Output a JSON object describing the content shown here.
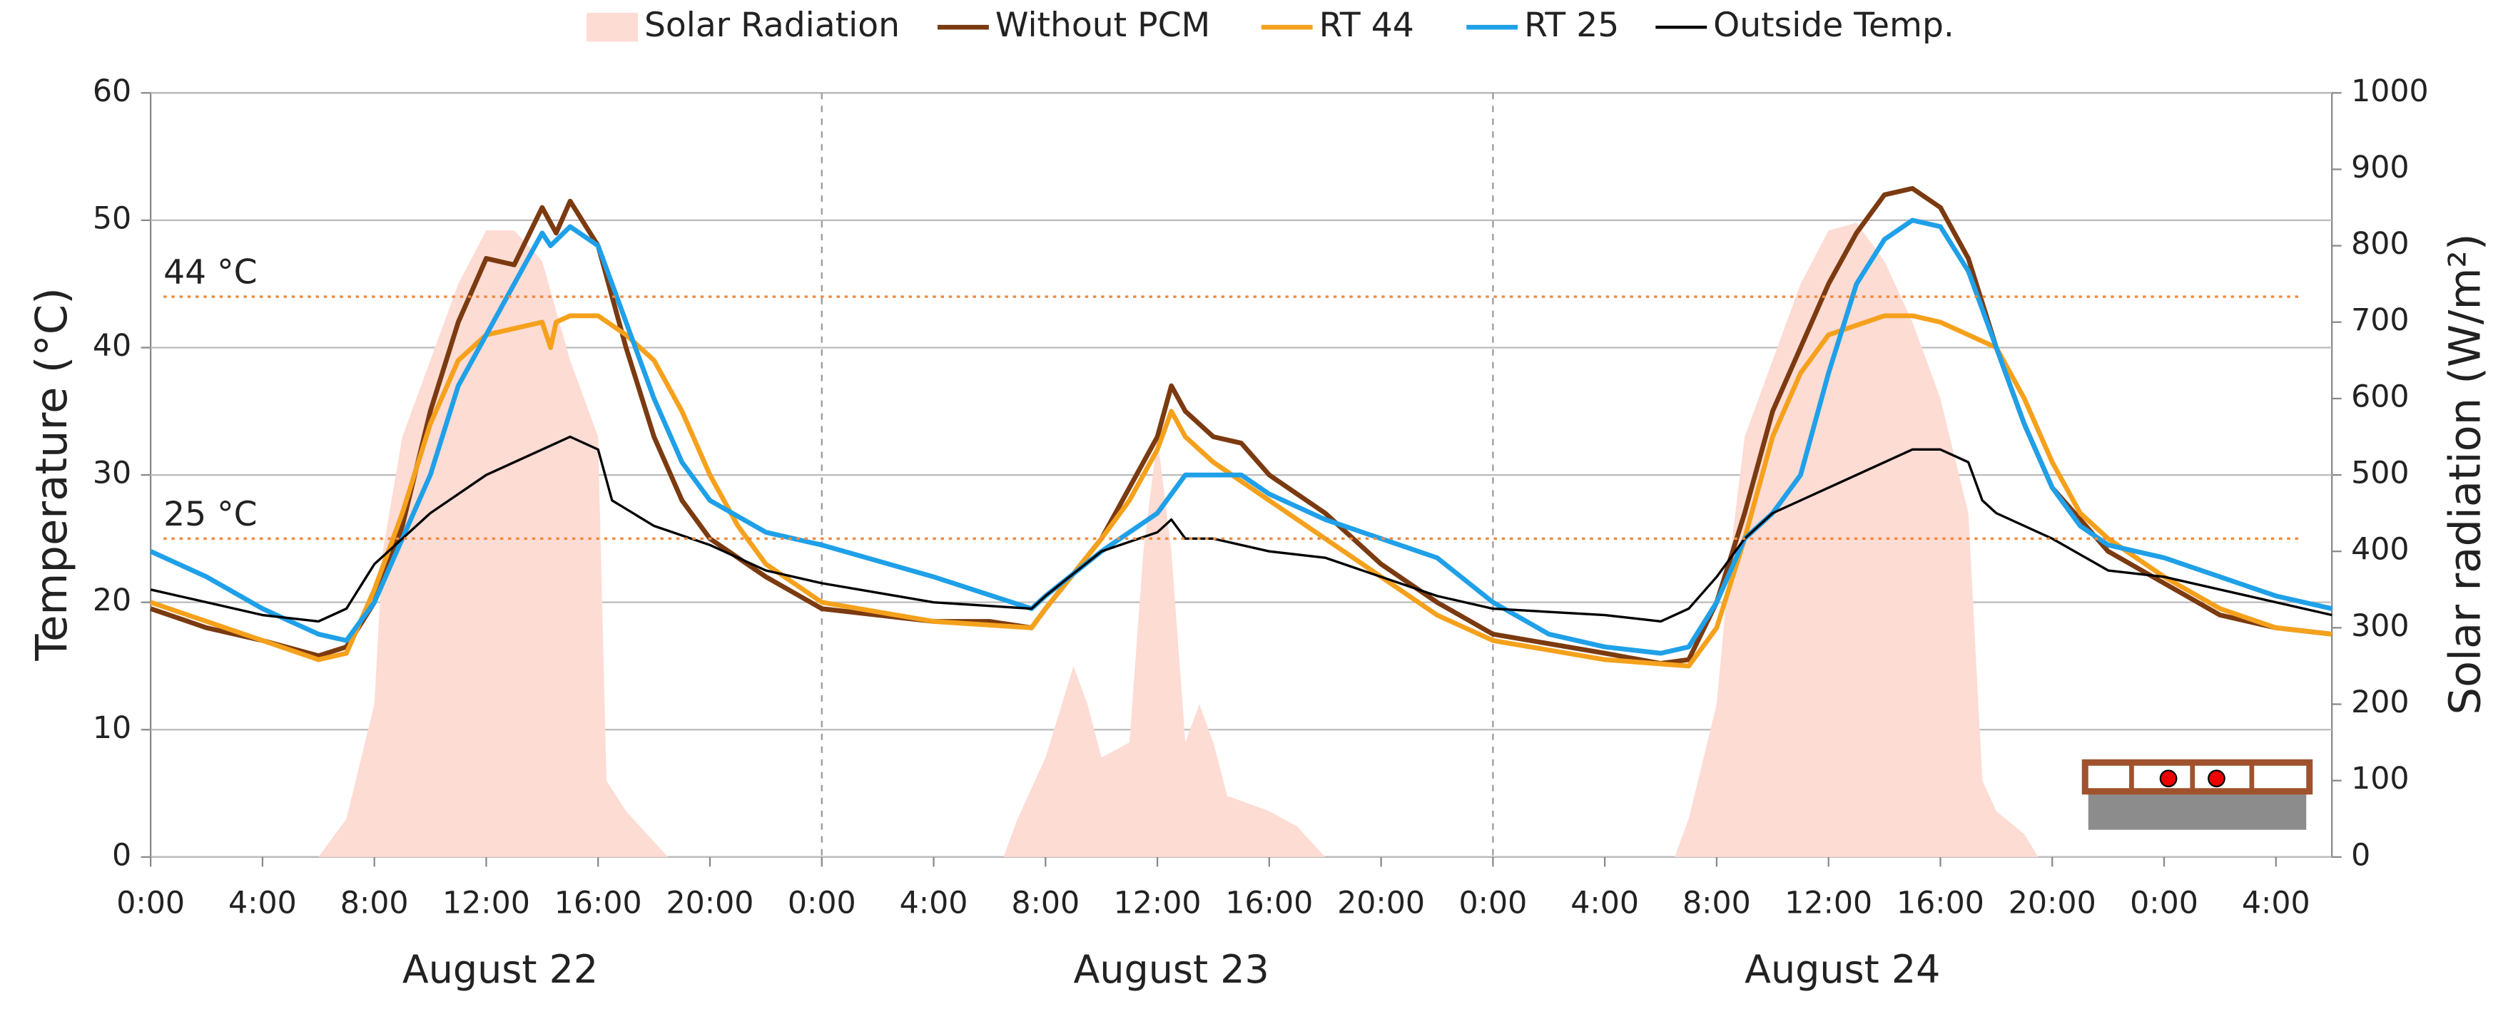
{
  "chart_data": {
    "type": "line",
    "xlim": [
      0,
      78
    ],
    "xticks": [
      {
        "value": 0,
        "label": "0:00"
      },
      {
        "value": 4,
        "label": "4:00"
      },
      {
        "value": 8,
        "label": "8:00"
      },
      {
        "value": 12,
        "label": "12:00"
      },
      {
        "value": 16,
        "label": "16:00"
      },
      {
        "value": 20,
        "label": "20:00"
      },
      {
        "value": 24,
        "label": "0:00"
      },
      {
        "value": 28,
        "label": "4:00"
      },
      {
        "value": 32,
        "label": "8:00"
      },
      {
        "value": 36,
        "label": "12:00"
      },
      {
        "value": 40,
        "label": "16:00"
      },
      {
        "value": 44,
        "label": "20:00"
      },
      {
        "value": 48,
        "label": "0:00"
      },
      {
        "value": 52,
        "label": "4:00"
      },
      {
        "value": 56,
        "label": "8:00"
      },
      {
        "value": 60,
        "label": "12:00"
      },
      {
        "value": 64,
        "label": "16:00"
      },
      {
        "value": 68,
        "label": "20:00"
      },
      {
        "value": 72,
        "label": "0:00"
      },
      {
        "value": 76,
        "label": "4:00"
      }
    ],
    "day_labels": [
      "August 22",
      "August 23",
      "August 24"
    ],
    "day_dividers": [
      24,
      48
    ],
    "ylabel": "Temperature (°C)",
    "y2label": "Solar radiation (W/m²)",
    "ylim": [
      0,
      60
    ],
    "yticks": [
      0,
      10,
      20,
      30,
      40,
      50,
      60
    ],
    "y2lim": [
      0,
      1000
    ],
    "y2ticks": [
      0,
      100,
      200,
      300,
      400,
      500,
      600,
      700,
      800,
      900,
      1000
    ],
    "grid": true,
    "legend": "top",
    "reference_lines": [
      {
        "value": 44,
        "label": "44 °C",
        "color": "#f08a3c"
      },
      {
        "value": 25,
        "label": "25 °C",
        "color": "#f08a3c"
      }
    ],
    "series": [
      {
        "name": "Solar Radiation",
        "color": "#fddcd4",
        "axis": "y2",
        "kind": "area",
        "x": [
          6,
          7,
          8,
          8.3,
          9,
          10,
          11,
          12,
          13,
          14,
          15,
          16,
          16.3,
          17,
          18,
          18.5,
          30.5,
          31,
          32,
          33,
          33.5,
          34,
          35,
          35.5,
          36,
          36.5,
          37,
          37.5,
          38,
          38.5,
          40,
          41,
          42,
          54.5,
          55,
          56,
          56.5,
          57,
          58,
          59,
          60,
          61,
          62,
          63,
          64,
          65,
          65.5,
          66,
          67,
          67.5
        ],
        "values": [
          0,
          50,
          200,
          400,
          550,
          650,
          750,
          820,
          820,
          780,
          650,
          550,
          100,
          60,
          20,
          0,
          0,
          50,
          130,
          250,
          200,
          130,
          150,
          400,
          550,
          400,
          150,
          200,
          150,
          80,
          60,
          40,
          0,
          0,
          50,
          200,
          400,
          550,
          650,
          750,
          820,
          830,
          780,
          700,
          600,
          450,
          100,
          60,
          30,
          0
        ]
      },
      {
        "name": "Without PCM",
        "color": "#7b3a10",
        "x": [
          0,
          2,
          4,
          6,
          7,
          8,
          9,
          10,
          11,
          12,
          13,
          14,
          14.5,
          15,
          16,
          17,
          18,
          19,
          20,
          22,
          24,
          28,
          30,
          31.5,
          32,
          34,
          35,
          36,
          36.5,
          37,
          38,
          39,
          40,
          42,
          44,
          46,
          48,
          52,
          54,
          55,
          56,
          57,
          58,
          60,
          61,
          62,
          63,
          64,
          65,
          66,
          67,
          68,
          70,
          72,
          74,
          76,
          78
        ],
        "values": [
          19.5,
          18,
          17,
          15.8,
          16.5,
          20,
          26,
          35,
          42,
          47,
          46.5,
          51,
          49,
          51.5,
          48,
          40,
          33,
          28,
          25,
          22,
          19.5,
          18.5,
          18.5,
          18,
          19.5,
          25,
          29,
          33,
          37,
          35,
          33,
          32.5,
          30,
          27,
          23,
          20,
          17.5,
          16,
          15.2,
          15.5,
          20,
          27,
          35,
          45,
          49,
          52,
          52.5,
          51,
          47,
          40,
          34,
          29,
          24,
          21.5,
          19,
          18,
          17.5
        ]
      },
      {
        "name": "RT 44",
        "color": "#f5a11c",
        "x": [
          0,
          4,
          6,
          7,
          8,
          9,
          10,
          11,
          12,
          13,
          14,
          14.3,
          14.5,
          15,
          16,
          17,
          18,
          19,
          20,
          21,
          22,
          24,
          28,
          31.5,
          32,
          34,
          35,
          36,
          36.5,
          37,
          38,
          40,
          42,
          44,
          46,
          48,
          52,
          55,
          56,
          57,
          58,
          59,
          60,
          62,
          63,
          64,
          65,
          66,
          67,
          68,
          69,
          70,
          72,
          74,
          76,
          78
        ],
        "values": [
          20,
          17,
          15.5,
          16,
          21,
          27,
          34,
          39,
          41,
          41.5,
          42,
          40,
          42,
          42.5,
          42.5,
          41,
          39,
          35,
          30,
          26,
          23,
          20,
          18.5,
          18,
          19.5,
          25,
          28,
          32,
          35,
          33,
          31,
          28,
          25,
          22,
          19,
          17,
          15.5,
          15,
          18,
          25,
          33,
          38,
          41,
          42.5,
          42.5,
          42,
          41,
          40,
          36,
          31,
          27,
          25,
          22,
          19.5,
          18,
          17.5
        ]
      },
      {
        "name": "RT 25",
        "color": "#1fa0e8",
        "x": [
          0,
          2,
          4,
          6,
          7,
          8,
          9,
          10,
          11,
          12,
          13,
          14,
          14.3,
          15,
          16,
          17,
          18,
          19,
          20,
          22,
          24,
          28,
          31.5,
          32,
          34,
          36,
          37,
          38,
          39,
          40,
          42,
          44,
          46,
          48,
          50,
          52,
          54,
          55,
          56,
          57,
          58,
          59,
          60,
          61,
          62,
          63,
          64,
          65,
          66,
          67,
          68,
          69,
          70,
          72,
          74,
          76,
          78
        ],
        "values": [
          24,
          22,
          19.5,
          17.5,
          17,
          20,
          25,
          30,
          37,
          41,
          45,
          49,
          48,
          49.5,
          48,
          42,
          36,
          31,
          28,
          25.5,
          24.5,
          22,
          19.5,
          20.5,
          24,
          27,
          30,
          30,
          30,
          28.5,
          26.5,
          25,
          23.5,
          20,
          17.5,
          16.5,
          16,
          16.5,
          20,
          25,
          27,
          30,
          38,
          45,
          48.5,
          50,
          49.5,
          46,
          40,
          34,
          29,
          26,
          24.5,
          23.5,
          22,
          20.5,
          19.5
        ]
      },
      {
        "name": "Outside Temp.",
        "color": "#000000",
        "thin": true,
        "x": [
          0,
          2,
          4,
          6,
          7,
          8,
          10,
          12,
          13,
          14,
          15,
          16,
          16.5,
          18,
          20,
          22,
          24,
          28,
          31.5,
          32,
          34,
          36,
          36.5,
          37,
          38,
          40,
          42,
          44,
          46,
          48,
          52,
          54,
          55,
          56,
          57,
          58,
          60,
          62,
          63,
          64,
          65,
          65.5,
          66,
          68,
          70,
          72,
          76,
          78
        ],
        "values": [
          21,
          20,
          19,
          18.5,
          19.5,
          23,
          27,
          30,
          31,
          32,
          33,
          32,
          28,
          26,
          24.5,
          22.5,
          21.5,
          20,
          19.5,
          20.5,
          24,
          25.5,
          26.5,
          25,
          25,
          24,
          23.5,
          22,
          20.5,
          19.5,
          19,
          18.5,
          19.5,
          22,
          25,
          27,
          29,
          31,
          32,
          32,
          31,
          28,
          27,
          25,
          22.5,
          22,
          20,
          19
        ]
      }
    ]
  }
}
